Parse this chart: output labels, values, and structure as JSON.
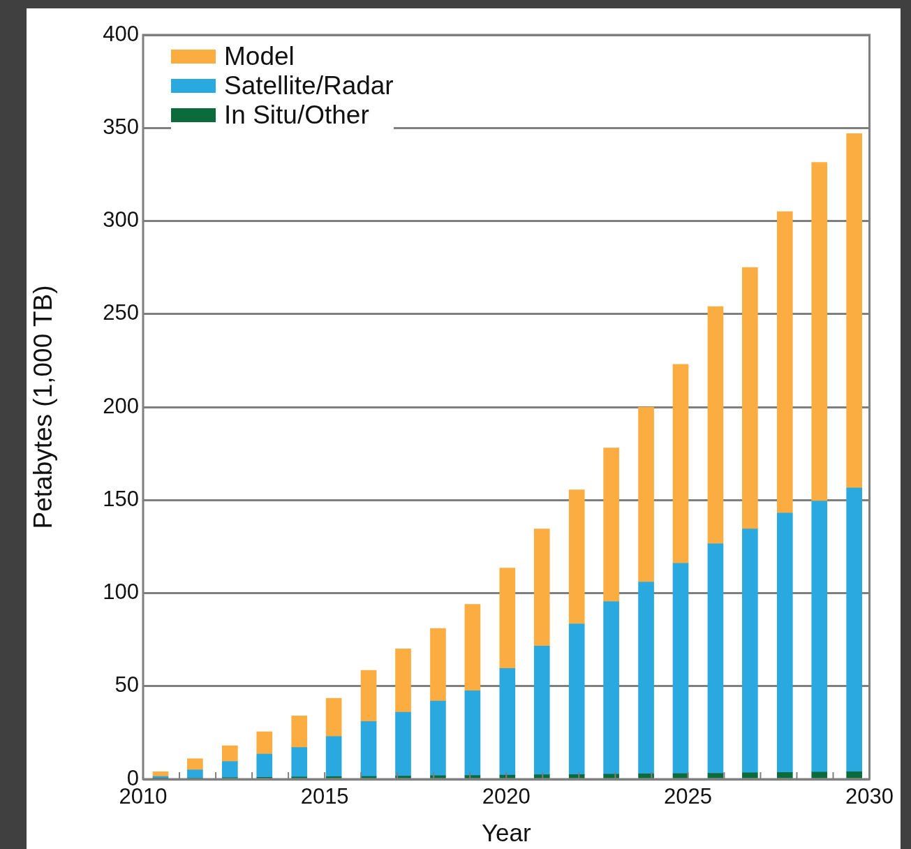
{
  "chart_data": {
    "type": "bar",
    "stacked": true,
    "xlabel": "Year",
    "ylabel": "Petabytes (1,000 TB)",
    "x": [
      2010.48,
      2011.43,
      2012.39,
      2013.34,
      2014.3,
      2015.25,
      2016.21,
      2017.16,
      2018.12,
      2019.07,
      2020.03,
      2020.98,
      2021.94,
      2022.89,
      2023.85,
      2024.8,
      2025.76,
      2026.71,
      2027.67,
      2028.62,
      2029.58
    ],
    "series": [
      {
        "name": "In Situ/Other",
        "color": "#0b6b3a",
        "values": [
          0.3,
          0.6,
          0.8,
          1,
          1.2,
          1.4,
          1.5,
          1.7,
          1.9,
          2,
          2.2,
          2.4,
          2.5,
          2.7,
          2.9,
          3,
          3.2,
          3.4,
          3.6,
          3.8,
          4
        ]
      },
      {
        "name": "Satellite/Radar",
        "color": "#29a9e0",
        "values": [
          1.2,
          4.4,
          8.7,
          12.5,
          15.8,
          21.6,
          29.5,
          34.3,
          40.1,
          45.5,
          57.3,
          69.1,
          81,
          92.8,
          103.1,
          113,
          123.3,
          131.1,
          139.4,
          145.7,
          152.5
        ]
      },
      {
        "name": "Model",
        "color": "#fbad41",
        "values": [
          2.5,
          6,
          8.5,
          12,
          17,
          20.5,
          27.5,
          34,
          39,
          46.5,
          54,
          63,
          72,
          82.5,
          94,
          107,
          127.5,
          140.5,
          162,
          182,
          190.5
        ]
      }
    ],
    "xlim": [
      2010,
      2030
    ],
    "xticks": [
      2010,
      {
        "value": 2011,
        "label": null
      },
      {
        "value": 2012,
        "label": null
      },
      {
        "value": 2013,
        "label": null
      },
      {
        "value": 2014,
        "label": null
      },
      2015,
      {
        "value": 2016,
        "label": null
      },
      {
        "value": 2017,
        "label": null
      },
      {
        "value": 2018,
        "label": null
      },
      {
        "value": 2019,
        "label": null
      },
      2020,
      {
        "value": 2021,
        "label": null
      },
      {
        "value": 2022,
        "label": null
      },
      {
        "value": 2023,
        "label": null
      },
      {
        "value": 2024,
        "label": null
      },
      2025,
      {
        "value": 2026,
        "label": null
      },
      {
        "value": 2027,
        "label": null
      },
      {
        "value": 2028,
        "label": null
      },
      {
        "value": 2029,
        "label": null
      },
      2030
    ],
    "ylim": [
      0,
      400
    ],
    "yticks": [
      0,
      50,
      100,
      150,
      200,
      250,
      300,
      350,
      400
    ],
    "grid": "y",
    "legend": "top left"
  }
}
